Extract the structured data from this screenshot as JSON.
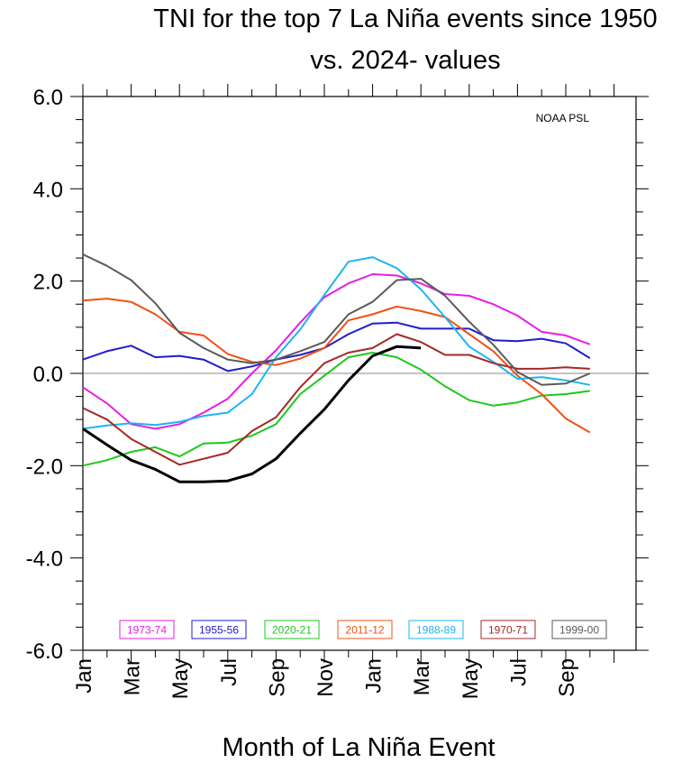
{
  "chart_data": {
    "type": "line",
    "title": "TNI for the top 7 La Niña events since 1950",
    "subtitle": "vs. 2024- values",
    "xlabel": "Month of La Niña Event",
    "ylabel": "",
    "note": "NOAA PSL",
    "ylim": [
      -6,
      6
    ],
    "xlim": [
      0,
      22
    ],
    "yticks": [
      6,
      4,
      2,
      0,
      -2,
      -4,
      -6
    ],
    "ytick_labels": [
      "6.0",
      "4.0",
      "2.0",
      "0.0",
      "-2.0",
      "-4.0",
      "-6.0"
    ],
    "xtick_positions": [
      0,
      2,
      4,
      6,
      8,
      10,
      12,
      14,
      16,
      18,
      20
    ],
    "xtick_labels": [
      "Jan",
      "Mar",
      "May",
      "Jul",
      "Sep",
      "Nov",
      "Jan",
      "Mar",
      "May",
      "Jul",
      "Sep"
    ],
    "months": [
      "Jan",
      "Feb",
      "Mar",
      "Apr",
      "May",
      "Jun",
      "Jul",
      "Aug",
      "Sep",
      "Oct",
      "Nov",
      "Dec",
      "Jan",
      "Feb",
      "Mar",
      "Apr",
      "May",
      "Jun",
      "Jul",
      "Aug",
      "Sep",
      "Oct"
    ],
    "zero_line": true,
    "series": [
      {
        "name": "1973-74",
        "color": "#e61ee6",
        "values": [
          -0.3,
          -0.65,
          -1.1,
          -1.2,
          -1.1,
          -0.85,
          -0.55,
          0.0,
          0.5,
          1.1,
          1.65,
          1.95,
          2.15,
          2.12,
          1.95,
          1.72,
          1.68,
          1.5,
          1.25,
          0.9,
          0.82,
          0.63
        ]
      },
      {
        "name": "1955-56",
        "color": "#1e1ecd",
        "values": [
          0.3,
          0.48,
          0.6,
          0.35,
          0.38,
          0.3,
          0.05,
          0.15,
          0.3,
          0.4,
          0.55,
          0.85,
          1.08,
          1.1,
          0.97,
          0.97,
          0.97,
          0.72,
          0.7,
          0.75,
          0.65,
          0.33
        ]
      },
      {
        "name": "2020-21",
        "color": "#1ec81e",
        "values": [
          -2.0,
          -1.88,
          -1.7,
          -1.6,
          -1.8,
          -1.52,
          -1.5,
          -1.35,
          -1.1,
          -0.45,
          -0.05,
          0.35,
          0.45,
          0.35,
          0.08,
          -0.28,
          -0.58,
          -0.7,
          -0.63,
          -0.48,
          -0.45,
          -0.38
        ]
      },
      {
        "name": "2011-12",
        "color": "#f05014",
        "values": [
          1.58,
          1.62,
          1.55,
          1.28,
          0.9,
          0.82,
          0.42,
          0.25,
          0.18,
          0.32,
          0.55,
          1.15,
          1.28,
          1.45,
          1.35,
          1.22,
          0.85,
          0.48,
          -0.05,
          -0.45,
          -0.98,
          -1.28
        ]
      },
      {
        "name": "1988-89",
        "color": "#1eb4f0",
        "values": [
          -1.2,
          -1.13,
          -1.08,
          -1.12,
          -1.05,
          -0.92,
          -0.85,
          -0.45,
          0.35,
          0.95,
          1.7,
          2.42,
          2.52,
          2.28,
          1.82,
          1.22,
          0.58,
          0.25,
          -0.12,
          -0.08,
          -0.15,
          -0.25
        ]
      },
      {
        "name": "1970-71",
        "color": "#a52828",
        "values": [
          -0.75,
          -1.0,
          -1.42,
          -1.7,
          -1.98,
          -1.85,
          -1.72,
          -1.25,
          -0.95,
          -0.3,
          0.22,
          0.45,
          0.55,
          0.85,
          0.68,
          0.4,
          0.4,
          0.22,
          0.1,
          0.1,
          0.13,
          0.1
        ]
      },
      {
        "name": "1999-00",
        "color": "#5a5a5a",
        "values": [
          2.58,
          2.33,
          2.02,
          1.52,
          0.88,
          0.55,
          0.3,
          0.22,
          0.3,
          0.48,
          0.68,
          1.28,
          1.55,
          2.02,
          2.05,
          1.68,
          1.12,
          0.62,
          0.03,
          -0.25,
          -0.22,
          0.0
        ]
      },
      {
        "name": "2024-",
        "color": "#000000",
        "bold": true,
        "values": [
          -1.2,
          -1.55,
          -1.88,
          -2.08,
          -2.35,
          -2.35,
          -2.33,
          -2.18,
          -1.85,
          -1.3,
          -0.78,
          -0.15,
          0.38,
          0.58,
          0.55
        ]
      }
    ],
    "legend": [
      "1973-74",
      "1955-56",
      "2020-21",
      "2011-12",
      "1988-89",
      "1970-71",
      "1999-00"
    ],
    "legend_placement": "bottom inside"
  }
}
